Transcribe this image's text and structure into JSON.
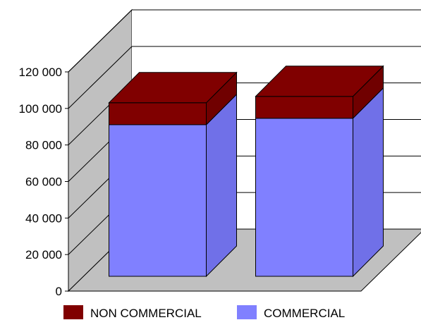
{
  "chart_data": {
    "type": "bar",
    "stacked": true,
    "three_d": true,
    "title": "",
    "xlabel": "",
    "ylabel": "",
    "categories": [
      "",
      ""
    ],
    "series": [
      {
        "name": "COMMERCIAL",
        "values": [
          83000,
          86500
        ],
        "color": "#8080ff"
      },
      {
        "name": "NON COMMERCIAL",
        "values": [
          12000,
          12000
        ],
        "color": "#800000"
      }
    ],
    "ylim": [
      0,
      120000
    ],
    "yticks": [
      0,
      20000,
      40000,
      60000,
      80000,
      100000,
      120000
    ],
    "ytick_labels": [
      "0",
      "20 000",
      "40 000",
      "60 000",
      "80 000",
      "100 000",
      "120 000"
    ],
    "grid": true,
    "legend": {
      "position": "bottom",
      "entries": [
        {
          "name": "NON COMMERCIAL",
          "color": "#800000"
        },
        {
          "name": "COMMERCIAL",
          "color": "#8080ff"
        }
      ]
    },
    "colors": {
      "back_wall": "#ffffff",
      "side_wall": "#c0c0c0",
      "floor": "#c0c0c0",
      "commercial_side": "#7070e8",
      "non_commercial_side": "#700000"
    }
  }
}
